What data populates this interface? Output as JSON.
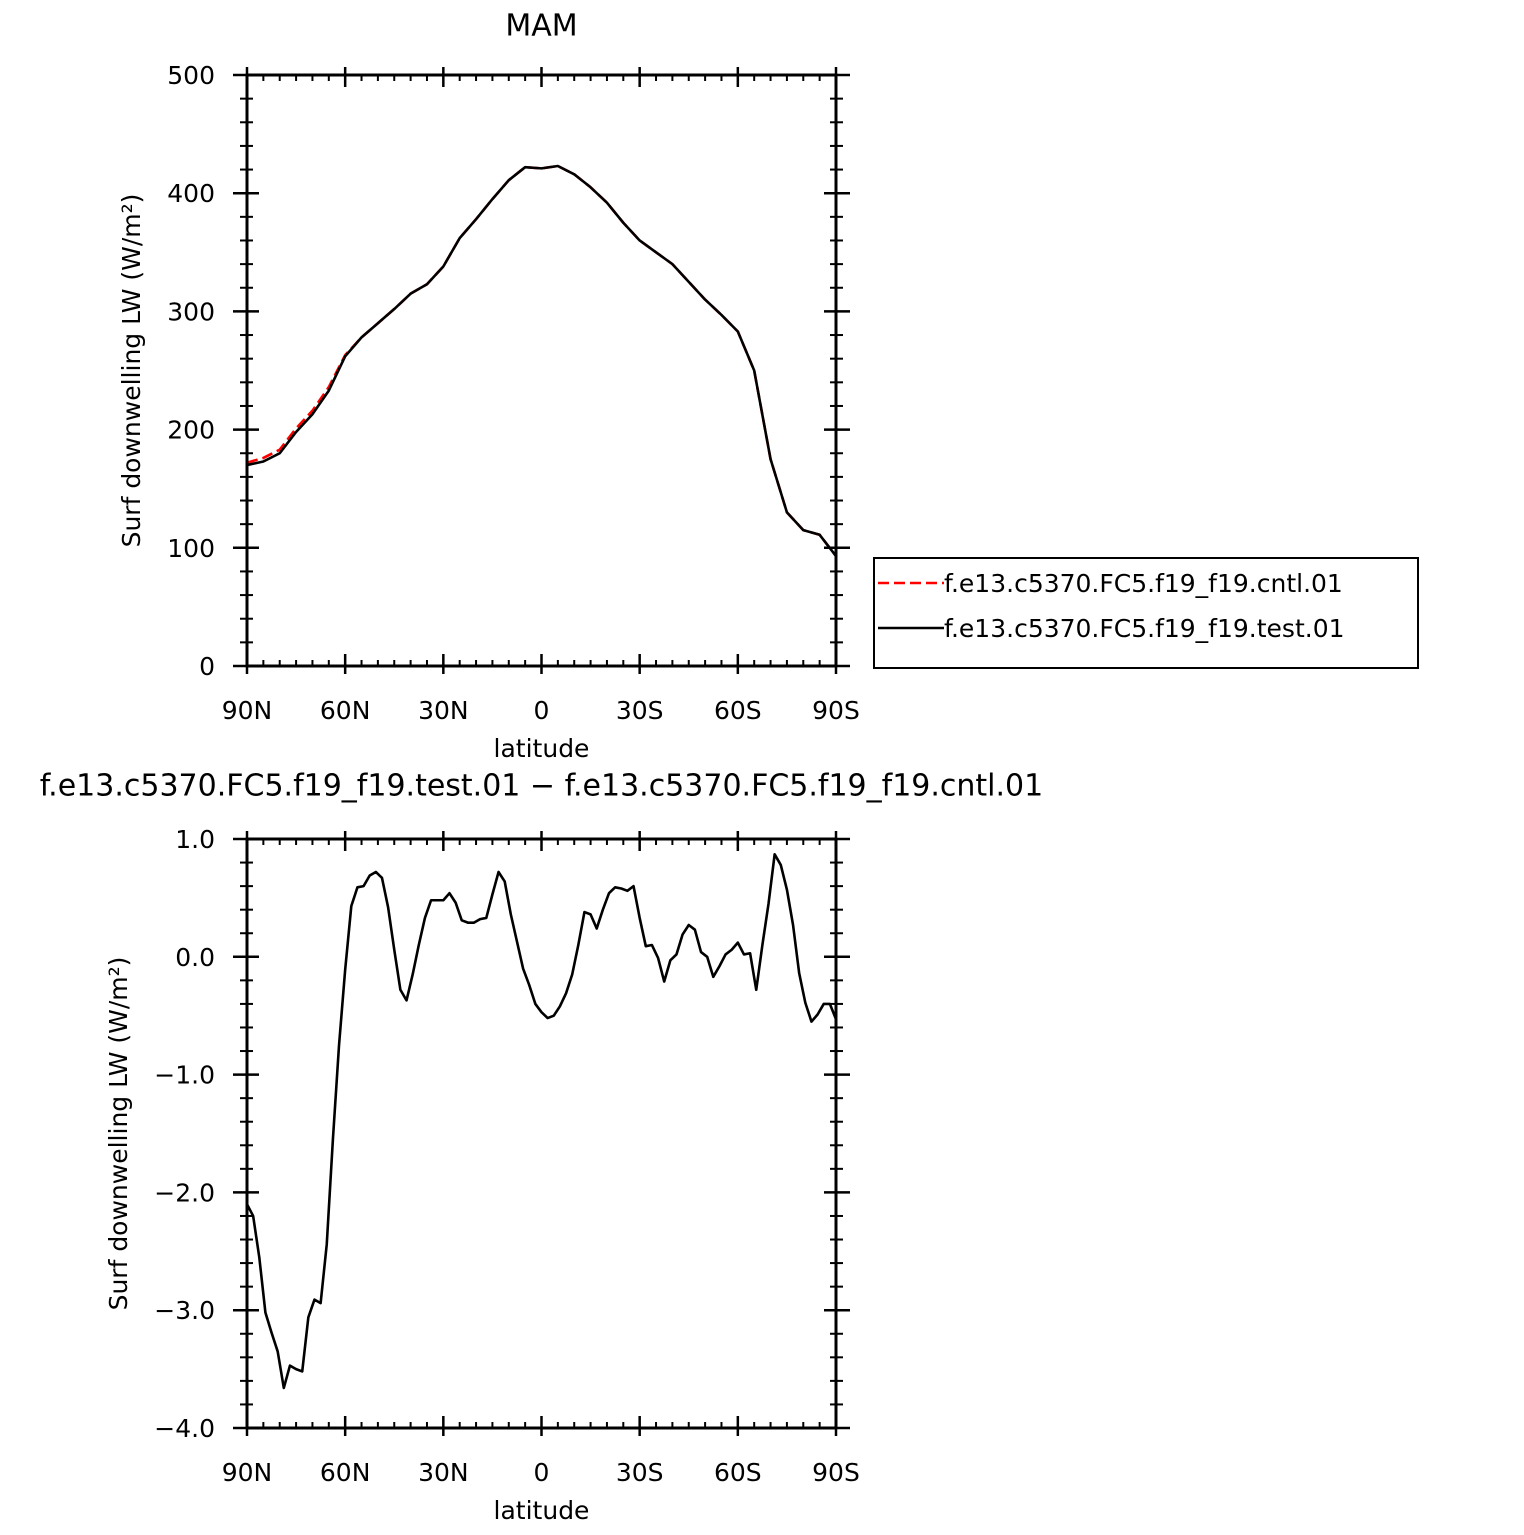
{
  "chart_data": [
    {
      "type": "line",
      "title": "MAM",
      "xlabel": "latitude",
      "ylabel": "Surf downwelling LW (W/m²)",
      "x": [
        90,
        85,
        80,
        75,
        70,
        65,
        60,
        55,
        50,
        45,
        40,
        35,
        30,
        25,
        20,
        15,
        10,
        5,
        0,
        -5,
        -10,
        -15,
        -20,
        -25,
        -30,
        -35,
        -40,
        -45,
        -50,
        -55,
        -60,
        -65,
        -70,
        -75,
        -80,
        -85,
        -90
      ],
      "xlim": [
        90,
        -90
      ],
      "xticks": [
        {
          "value": 90,
          "label": "90N"
        },
        {
          "value": 60,
          "label": "60N"
        },
        {
          "value": 30,
          "label": "30N"
        },
        0,
        {
          "value": -30,
          "label": "30S"
        },
        {
          "value": -60,
          "label": "60S"
        },
        {
          "value": -90,
          "label": "90S"
        }
      ],
      "ylim": [
        0,
        500
      ],
      "yticks": [
        0,
        100,
        200,
        300,
        400,
        500
      ],
      "legend": "right",
      "series": [
        {
          "name": "f.e13.c5370.FC5.f19_f19.cntl.01",
          "color": "#ff0000",
          "linestyle": "dashed",
          "values": [
            172,
            176,
            183,
            201,
            216,
            236,
            263,
            278,
            290,
            302,
            315,
            323,
            338,
            362,
            378,
            395,
            411,
            422,
            421,
            423,
            416,
            405,
            392,
            375,
            360,
            350,
            340,
            325,
            310,
            297,
            283,
            250,
            175,
            130,
            115,
            111,
            93
          ]
        },
        {
          "name": "f.e13.c5370.FC5.f19_f19.test.01",
          "color": "#000000",
          "linestyle": "solid",
          "values": [
            170,
            173,
            180,
            198,
            213,
            233,
            262,
            278,
            290,
            302,
            315,
            323,
            338,
            362,
            378,
            395,
            411,
            422,
            421,
            423,
            416,
            405,
            392,
            375,
            360,
            350,
            340,
            325,
            310,
            297,
            283,
            250,
            175,
            130,
            115,
            111,
            93
          ]
        }
      ]
    },
    {
      "type": "line",
      "title": "f.e13.c5370.FC5.f19_f19.test.01 − f.e13.c5370.FC5.f19_f19.cntl.01",
      "xlabel": "latitude",
      "ylabel": "Surf downwelling LW (W/m²)",
      "x": [
        90,
        88.125,
        86.25,
        84.375,
        82.5,
        80.625,
        78.75,
        76.875,
        75,
        73.125,
        71.25,
        69.375,
        67.5,
        65.625,
        63.75,
        61.875,
        60,
        58.125,
        56.25,
        54.375,
        52.5,
        50.625,
        48.75,
        46.875,
        45,
        43.125,
        41.25,
        39.375,
        37.5,
        35.625,
        33.75,
        31.875,
        30,
        28.125,
        26.25,
        24.375,
        22.5,
        20.625,
        18.75,
        16.875,
        15,
        13.125,
        11.25,
        9.375,
        7.5,
        5.625,
        3.75,
        1.875,
        0,
        -1.875,
        -3.75,
        -5.625,
        -7.5,
        -9.375,
        -11.25,
        -13.125,
        -15,
        -16.875,
        -18.75,
        -20.625,
        -22.5,
        -24.375,
        -26.25,
        -28.125,
        -30,
        -31.875,
        -33.75,
        -35.625,
        -37.5,
        -39.375,
        -41.25,
        -43.125,
        -45,
        -46.875,
        -48.75,
        -50.625,
        -52.5,
        -54.375,
        -56.25,
        -58.125,
        -60,
        -61.875,
        -63.75,
        -65.625,
        -67.5,
        -69.375,
        -71.25,
        -73.125,
        -75,
        -76.875,
        -78.75,
        -80.625,
        -82.5,
        -84.375,
        -86.25,
        -88.125,
        -90
      ],
      "xlim": [
        90,
        -90
      ],
      "xticks": [
        {
          "value": 90,
          "label": "90N"
        },
        {
          "value": 60,
          "label": "60N"
        },
        {
          "value": 30,
          "label": "30N"
        },
        0,
        {
          "value": -30,
          "label": "30S"
        },
        {
          "value": -60,
          "label": "60S"
        },
        {
          "value": -90,
          "label": "90S"
        }
      ],
      "ylim": [
        -4,
        1
      ],
      "yticks": [
        {
          "value": -4,
          "label": "−4.0"
        },
        {
          "value": -3,
          "label": "−3.0"
        },
        {
          "value": -2,
          "label": "−2.0"
        },
        {
          "value": -1,
          "label": "−1.0"
        },
        {
          "value": 0,
          "label": "0.0"
        },
        {
          "value": 1,
          "label": "1.0"
        }
      ],
      "color": "#000000",
      "values": [
        -2.1,
        -2.2,
        -2.55,
        -3.02,
        -3.19,
        -3.35,
        -3.66,
        -3.47,
        -3.5,
        -3.52,
        -3.06,
        -2.91,
        -2.94,
        -2.44,
        -1.55,
        -0.75,
        -0.11,
        0.43,
        0.59,
        0.6,
        0.69,
        0.72,
        0.67,
        0.42,
        0.06,
        -0.28,
        -0.37,
        -0.15,
        0.1,
        0.33,
        0.48,
        0.48,
        0.48,
        0.54,
        0.46,
        0.31,
        0.29,
        0.29,
        0.32,
        0.33,
        0.53,
        0.72,
        0.64,
        0.36,
        0.13,
        -0.1,
        -0.24,
        -0.4,
        -0.47,
        -0.52,
        -0.5,
        -0.42,
        -0.31,
        -0.15,
        0.1,
        0.38,
        0.36,
        0.24,
        0.4,
        0.54,
        0.59,
        0.58,
        0.56,
        0.6,
        0.33,
        0.09,
        0.1,
        -0.01,
        -0.21,
        -0.03,
        0.02,
        0.19,
        0.27,
        0.23,
        0.04,
        0.0,
        -0.17,
        -0.08,
        0.02,
        0.06,
        0.12,
        0.02,
        0.03,
        -0.28,
        0.1,
        0.45,
        0.87,
        0.78,
        0.57,
        0.27,
        -0.14,
        -0.39,
        -0.55,
        -0.49,
        -0.4,
        -0.4,
        -0.53
      ]
    }
  ]
}
